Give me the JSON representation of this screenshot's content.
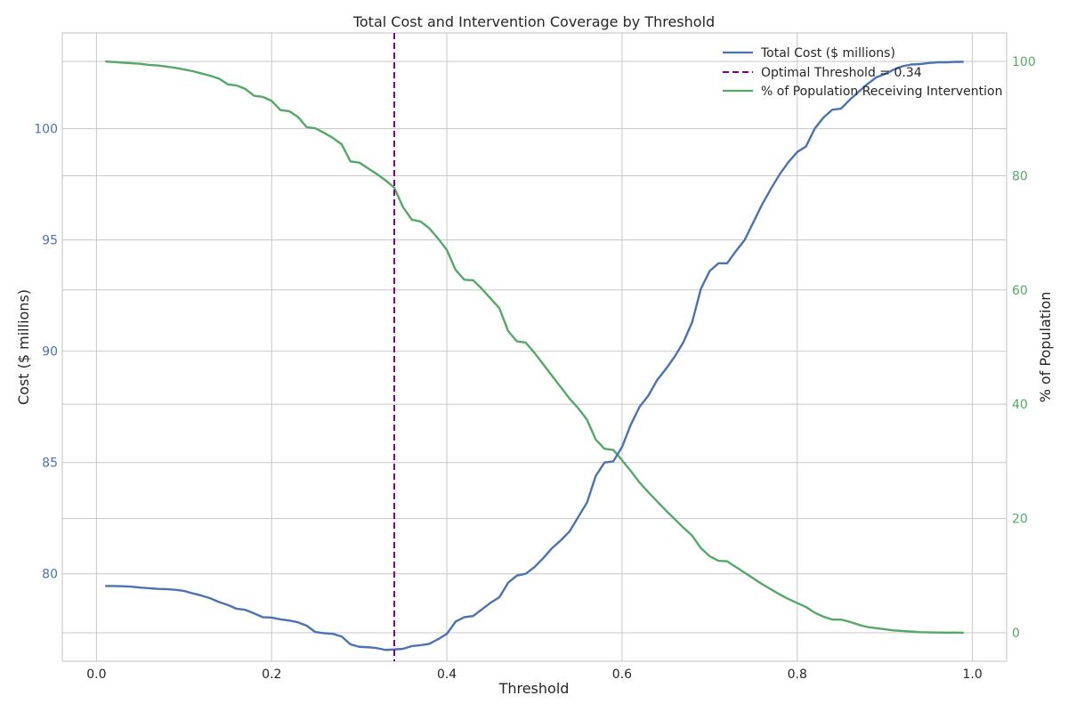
{
  "chart_data": {
    "type": "line",
    "title": "Total Cost and Intervention Coverage by Threshold",
    "xlabel": "Threshold",
    "ylabel_left": "Cost ($ millions)",
    "ylabel_right": "% of Population",
    "xlim": [
      -0.039,
      1.039
    ],
    "ylim_left": [
      76.07,
      104.3
    ],
    "ylim_right": [
      -5,
      105
    ],
    "x_ticks": [
      0.0,
      0.2,
      0.4,
      0.6,
      0.8,
      1.0
    ],
    "x_tick_labels": [
      "0.0",
      "0.2",
      "0.4",
      "0.6",
      "0.8",
      "1.0"
    ],
    "y_left_ticks": [
      80,
      85,
      90,
      95,
      100
    ],
    "y_left_tick_labels": [
      "80",
      "85",
      "90",
      "95",
      "100"
    ],
    "y_right_ticks": [
      0,
      20,
      40,
      60,
      80,
      100
    ],
    "y_right_tick_labels": [
      "0",
      "20",
      "40",
      "60",
      "80",
      "100"
    ],
    "grid": true,
    "legend_position": "top-right",
    "optimal_threshold": 0.34,
    "x": [
      0.01,
      0.02,
      0.03,
      0.04,
      0.05,
      0.06,
      0.07,
      0.08,
      0.09,
      0.1,
      0.11,
      0.12,
      0.13,
      0.14,
      0.15,
      0.16,
      0.17,
      0.18,
      0.19,
      0.2,
      0.21,
      0.22,
      0.23,
      0.24,
      0.25,
      0.26,
      0.27,
      0.28,
      0.29,
      0.3,
      0.31,
      0.32,
      0.33,
      0.34,
      0.35,
      0.36,
      0.37,
      0.38,
      0.39,
      0.4,
      0.41,
      0.42,
      0.43,
      0.44,
      0.45,
      0.46,
      0.47,
      0.48,
      0.49,
      0.5,
      0.51,
      0.52,
      0.53,
      0.54,
      0.55,
      0.56,
      0.57,
      0.58,
      0.59,
      0.6,
      0.61,
      0.62,
      0.63,
      0.64,
      0.65,
      0.66,
      0.67,
      0.68,
      0.69,
      0.7,
      0.71,
      0.72,
      0.73,
      0.74,
      0.75,
      0.76,
      0.77,
      0.78,
      0.79,
      0.8,
      0.81,
      0.82,
      0.83,
      0.84,
      0.85,
      0.86,
      0.87,
      0.88,
      0.89,
      0.9,
      0.91,
      0.92,
      0.93,
      0.94,
      0.95,
      0.96,
      0.97,
      0.98,
      0.99
    ],
    "series": [
      {
        "name": "Total Cost ($ millions)",
        "axis": "left",
        "color": "#4c72b0",
        "style": "solid",
        "values": [
          79.45,
          79.45,
          79.44,
          79.42,
          79.38,
          79.35,
          79.32,
          79.31,
          79.28,
          79.23,
          79.12,
          79.02,
          78.9,
          78.73,
          78.6,
          78.43,
          78.38,
          78.22,
          78.05,
          78.03,
          77.95,
          77.9,
          77.82,
          77.67,
          77.38,
          77.33,
          77.3,
          77.18,
          76.83,
          76.72,
          76.7,
          76.66,
          76.58,
          76.6,
          76.63,
          76.75,
          76.79,
          76.85,
          77.06,
          77.3,
          77.85,
          78.05,
          78.1,
          78.4,
          78.7,
          78.95,
          79.6,
          79.92,
          80.0,
          80.3,
          80.7,
          81.15,
          81.5,
          81.9,
          82.55,
          83.2,
          84.4,
          85.0,
          85.05,
          85.7,
          86.7,
          87.5,
          88.0,
          88.7,
          89.2,
          89.75,
          90.4,
          91.3,
          92.8,
          93.6,
          93.95,
          93.95,
          94.5,
          95.0,
          95.8,
          96.6,
          97.3,
          97.95,
          98.5,
          98.95,
          99.2,
          100.0,
          100.5,
          100.85,
          100.9,
          101.3,
          101.65,
          102.0,
          102.3,
          102.45,
          102.65,
          102.8,
          102.88,
          102.9,
          102.95,
          102.98,
          102.98,
          103.0,
          103.0
        ]
      },
      {
        "name": "% of Population Receiving Intervention",
        "axis": "right",
        "color": "#55a868",
        "style": "solid",
        "values": [
          100.0,
          99.9,
          99.8,
          99.7,
          99.6,
          99.4,
          99.3,
          99.1,
          98.9,
          98.6,
          98.3,
          97.9,
          97.5,
          97.0,
          96.0,
          95.8,
          95.2,
          94.0,
          93.8,
          93.1,
          91.5,
          91.3,
          90.3,
          88.5,
          88.3,
          87.5,
          86.6,
          85.5,
          82.5,
          82.3,
          81.3,
          80.3,
          79.2,
          77.9,
          74.5,
          72.3,
          72.0,
          70.8,
          69.0,
          67.0,
          63.5,
          61.8,
          61.7,
          60.2,
          58.5,
          56.8,
          52.8,
          51.0,
          50.8,
          49.0,
          47.0,
          45.0,
          43.0,
          41.0,
          39.3,
          37.3,
          33.8,
          32.2,
          32.0,
          30.2,
          28.3,
          26.3,
          24.6,
          23.0,
          21.4,
          19.9,
          18.4,
          17.0,
          14.8,
          13.4,
          12.6,
          12.5,
          11.5,
          10.5,
          9.5,
          8.5,
          7.6,
          6.7,
          5.9,
          5.2,
          4.5,
          3.5,
          2.8,
          2.3,
          2.3,
          1.9,
          1.4,
          1.0,
          0.8,
          0.6,
          0.4,
          0.3,
          0.2,
          0.1,
          0.05,
          0.03,
          0.02,
          0.01,
          0.0
        ]
      },
      {
        "name": "Optimal Threshold = 0.34",
        "type": "vline",
        "color": "#800080",
        "style": "dashed"
      }
    ]
  }
}
